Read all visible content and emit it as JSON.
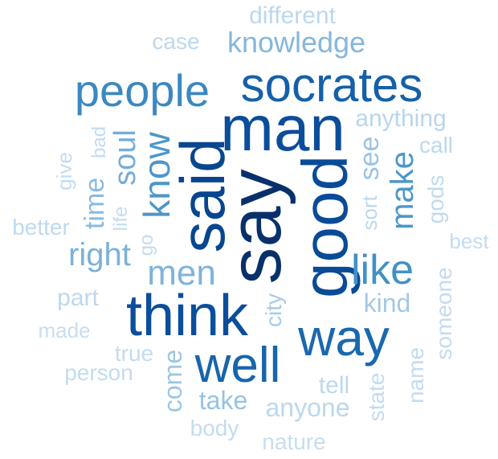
{
  "cloud": {
    "words": [
      {
        "text": "say",
        "color": "#08306b"
      },
      {
        "text": "said",
        "color": "#08468f"
      },
      {
        "text": "good",
        "color": "#0a4b97"
      },
      {
        "text": "man",
        "color": "#0b4d9a"
      },
      {
        "text": "think",
        "color": "#0b4e9b"
      },
      {
        "text": "socrates",
        "color": "#1560a8"
      },
      {
        "text": "well",
        "color": "#1765ab"
      },
      {
        "text": "way",
        "color": "#1a68ae"
      },
      {
        "text": "people",
        "color": "#3b88c2"
      },
      {
        "text": "know",
        "color": "#4c97c9"
      },
      {
        "text": "like",
        "color": "#4191c6"
      },
      {
        "text": "make",
        "color": "#4c97c9"
      },
      {
        "text": "soul",
        "color": "#75add6"
      },
      {
        "text": "right",
        "color": "#7bb1d9"
      },
      {
        "text": "men",
        "color": "#7fb3da"
      },
      {
        "text": "knowledge",
        "color": "#85b7db"
      },
      {
        "text": "time",
        "color": "#8abade"
      },
      {
        "text": "see",
        "color": "#9ac4e2"
      },
      {
        "text": "take",
        "color": "#97c2e1"
      },
      {
        "text": "come",
        "color": "#9dc6e2"
      },
      {
        "text": "kind",
        "color": "#a3c9e4"
      },
      {
        "text": "city",
        "color": "#a8cce5"
      },
      {
        "text": "anything",
        "color": "#b8d6ec"
      },
      {
        "text": "different",
        "color": "#bcd8ec"
      },
      {
        "text": "case",
        "color": "#bcd8ec"
      },
      {
        "text": "call",
        "color": "#bcd8ec"
      },
      {
        "text": "sort",
        "color": "#bcd8ec"
      },
      {
        "text": "gods",
        "color": "#bfdaee"
      },
      {
        "text": "best",
        "color": "#c3dcef"
      },
      {
        "text": "bad",
        "color": "#c3dcef"
      },
      {
        "text": "give",
        "color": "#c3dcef"
      },
      {
        "text": "life",
        "color": "#c3dcef"
      },
      {
        "text": "go",
        "color": "#c3dcef"
      },
      {
        "text": "better",
        "color": "#bfdaee"
      },
      {
        "text": "part",
        "color": "#bcd8ec"
      },
      {
        "text": "made",
        "color": "#c6deef"
      },
      {
        "text": "true",
        "color": "#c3dcef"
      },
      {
        "text": "person",
        "color": "#c3dcef"
      },
      {
        "text": "someone",
        "color": "#c3dcef"
      },
      {
        "text": "name",
        "color": "#c3dcef"
      },
      {
        "text": "tell",
        "color": "#bcd8ec"
      },
      {
        "text": "state",
        "color": "#c3dcef"
      },
      {
        "text": "anyone",
        "color": "#bcd8ec"
      },
      {
        "text": "body",
        "color": "#c3dcef"
      },
      {
        "text": "nature",
        "color": "#c6deef"
      }
    ]
  }
}
